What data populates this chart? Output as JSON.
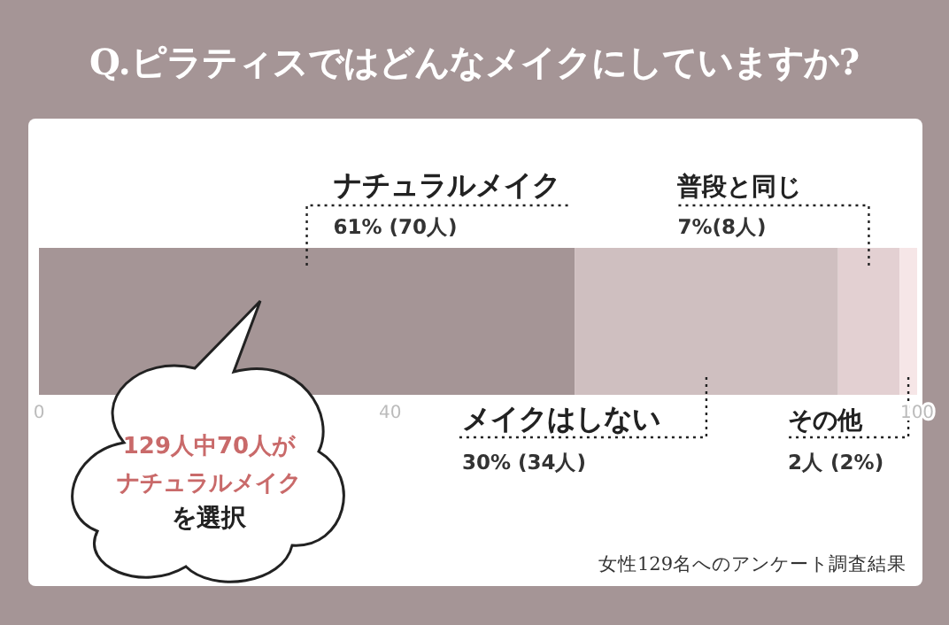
{
  "chart_data": {
    "type": "bar",
    "orientation": "horizontal",
    "stacked": true,
    "title": "Q.ピラティスではどんなメイクにしていますか?",
    "categories": [
      null
    ],
    "series": [
      {
        "name": "ナチュラルメイク",
        "color": "#a59596",
        "values": [
          61
        ],
        "value_labels": [
          "61% (70人)"
        ]
      },
      {
        "name": "メイクはしない",
        "color": "#cfbfc0",
        "values": [
          30
        ],
        "value_labels": [
          "30% (34人)"
        ]
      },
      {
        "name": "普段と同じ",
        "color": "#e3d0d2",
        "values": [
          7
        ],
        "value_labels": [
          "7%(8人)"
        ]
      },
      {
        "name": "その他",
        "color": "#f6e6e7",
        "values": [
          2
        ],
        "value_labels": [
          "2人 (2%)"
        ]
      }
    ],
    "xlim": [
      0,
      100
    ],
    "xticks": [
      0,
      40,
      100
    ],
    "grid": false,
    "annotations": [
      "129人中70人が",
      "ナチュラルメイク",
      "を選択",
      "女性129名へのアンケート調査結果"
    ]
  }
}
